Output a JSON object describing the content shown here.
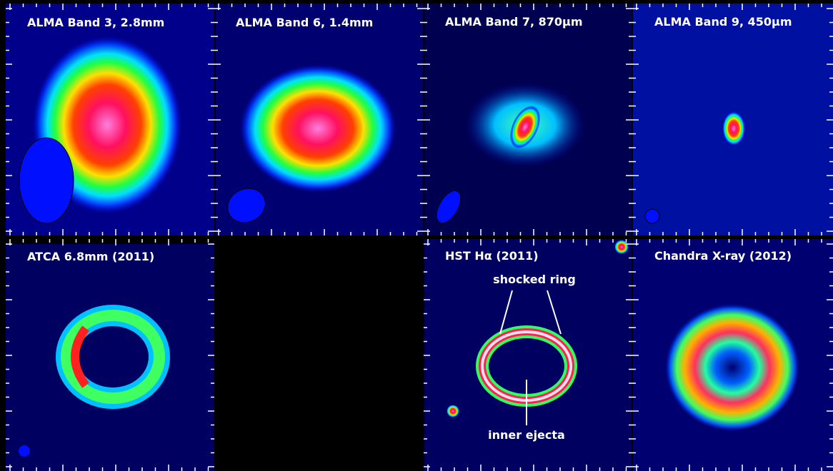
{
  "panels": [
    {
      "label": "ALMA Band 3, 2.8mm"
    },
    {
      "label": "ALMA Band 6, 1.4mm"
    },
    {
      "label": "ALMA Band 7, 870μm"
    },
    {
      "label": "ALMA Band 9, 450μm"
    },
    {
      "label": "ATCA 6.8mm (2011)"
    },
    {
      "label": "HST Hα (2011)"
    },
    {
      "label": "Chandra X-ray (2012)"
    }
  ],
  "annotations": {
    "shocked_ring": "shocked ring",
    "inner_ejecta": "inner ejecta"
  }
}
